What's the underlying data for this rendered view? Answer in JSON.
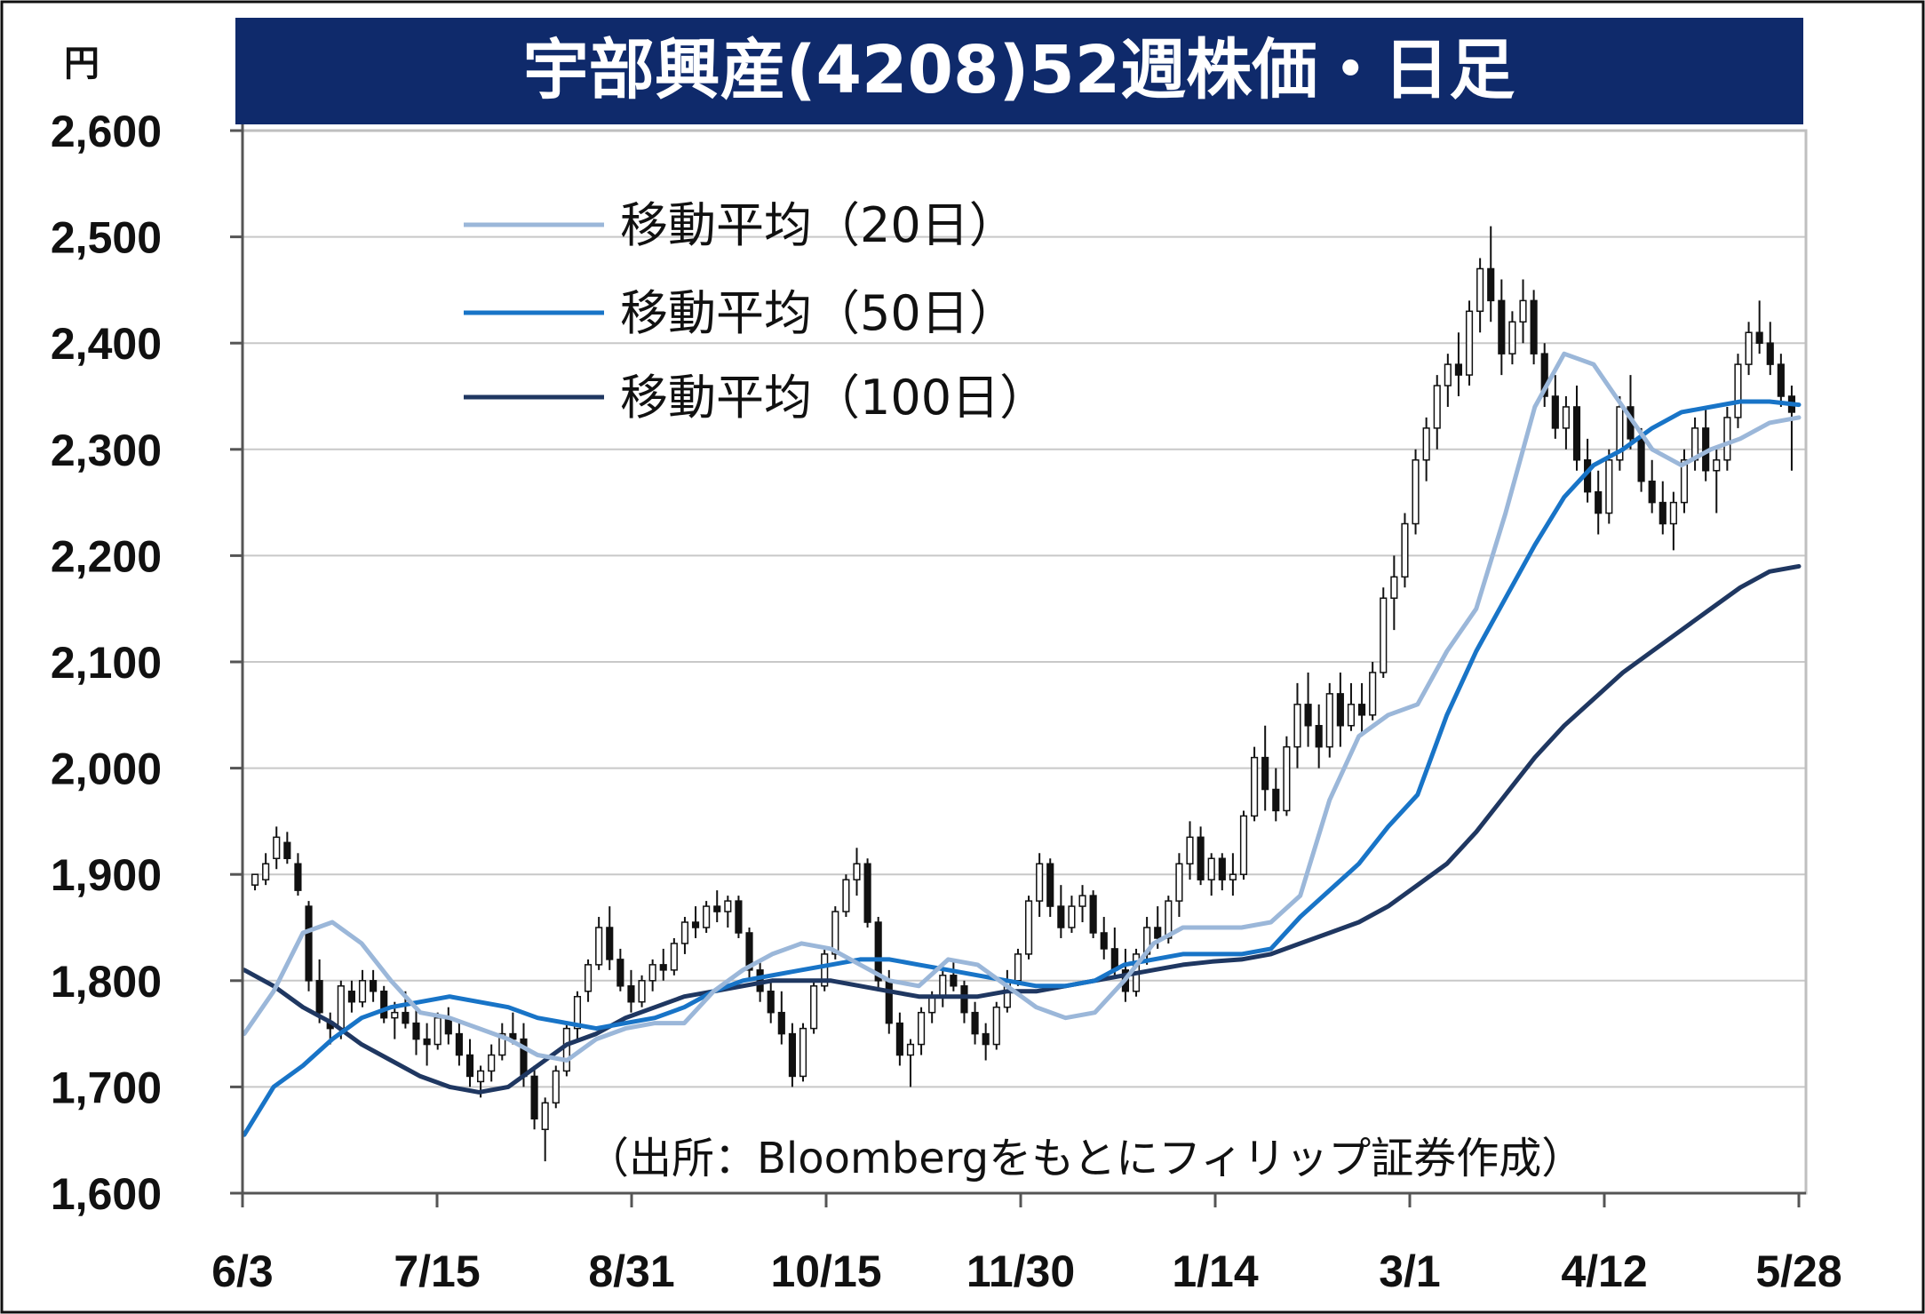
{
  "chart_data": {
    "type": "candlestick",
    "title": "宇部興産(4208)52週株価・日足",
    "unit_label": "円",
    "source_note": "（出所：Bloombergをもとにフィリップ証券作成）",
    "ylim": [
      1600,
      2600
    ],
    "y_ticks": [
      "1,600",
      "1,700",
      "1,800",
      "1,900",
      "2,000",
      "2,100",
      "2,200",
      "2,300",
      "2,400",
      "2,500",
      "2,600"
    ],
    "y_tick_values": [
      1600,
      1700,
      1800,
      1900,
      2000,
      2100,
      2200,
      2300,
      2400,
      2500,
      2600
    ],
    "x_ticks": [
      "6/3",
      "7/15",
      "8/31",
      "10/15",
      "11/30",
      "1/14",
      "3/1",
      "4/12",
      "5/28"
    ],
    "grid": true,
    "legend_position": "top-left",
    "colors": {
      "title_bg": "#0f2a6b",
      "ma20": "#9bb7d9",
      "ma50": "#1874c7",
      "ma100": "#1f3761",
      "candle": "#111111",
      "grid": "#c8c8c8"
    },
    "series": [
      {
        "name": "移動平均（20日）",
        "key": "ma20",
        "values": [
          1750,
          1790,
          1845,
          1855,
          1835,
          1800,
          1770,
          1765,
          1755,
          1745,
          1730,
          1725,
          1745,
          1755,
          1760,
          1760,
          1790,
          1810,
          1825,
          1835,
          1830,
          1815,
          1800,
          1795,
          1820,
          1815,
          1795,
          1775,
          1765,
          1770,
          1800,
          1835,
          1850,
          1850,
          1850,
          1855,
          1880,
          1970,
          2030,
          2050,
          2060,
          2110,
          2150,
          2240,
          2340,
          2390,
          2380,
          2340,
          2300,
          2285,
          2300,
          2310,
          2325,
          2330
        ]
      },
      {
        "name": "移動平均（50日）",
        "key": "ma50",
        "values": [
          1655,
          1700,
          1720,
          1745,
          1765,
          1775,
          1780,
          1785,
          1780,
          1775,
          1765,
          1760,
          1755,
          1760,
          1765,
          1775,
          1790,
          1800,
          1805,
          1810,
          1815,
          1820,
          1820,
          1815,
          1810,
          1805,
          1800,
          1795,
          1795,
          1800,
          1815,
          1820,
          1825,
          1825,
          1825,
          1830,
          1860,
          1885,
          1910,
          1945,
          1975,
          2050,
          2110,
          2160,
          2210,
          2255,
          2285,
          2300,
          2320,
          2335,
          2340,
          2345,
          2345,
          2342
        ]
      },
      {
        "name": "移動平均（100日）",
        "key": "ma100",
        "values": [
          1810,
          1795,
          1775,
          1760,
          1740,
          1725,
          1710,
          1700,
          1695,
          1700,
          1720,
          1740,
          1750,
          1765,
          1775,
          1785,
          1790,
          1795,
          1800,
          1800,
          1800,
          1795,
          1790,
          1785,
          1785,
          1785,
          1790,
          1790,
          1795,
          1800,
          1805,
          1810,
          1815,
          1818,
          1820,
          1825,
          1835,
          1845,
          1855,
          1870,
          1890,
          1910,
          1940,
          1975,
          2010,
          2040,
          2065,
          2090,
          2110,
          2130,
          2150,
          2170,
          2185,
          2190
        ]
      }
    ],
    "candles": [
      [
        1890,
        1900,
        1885,
        1900
      ],
      [
        1895,
        1920,
        1890,
        1910
      ],
      [
        1915,
        1945,
        1905,
        1935
      ],
      [
        1930,
        1940,
        1910,
        1915
      ],
      [
        1910,
        1920,
        1880,
        1885
      ],
      [
        1870,
        1875,
        1790,
        1800
      ],
      [
        1800,
        1820,
        1760,
        1770
      ],
      [
        1760,
        1770,
        1740,
        1755
      ],
      [
        1755,
        1800,
        1745,
        1795
      ],
      [
        1790,
        1800,
        1770,
        1780
      ],
      [
        1780,
        1810,
        1775,
        1800
      ],
      [
        1800,
        1810,
        1780,
        1790
      ],
      [
        1790,
        1795,
        1760,
        1765
      ],
      [
        1765,
        1780,
        1745,
        1770
      ],
      [
        1770,
        1790,
        1755,
        1760
      ],
      [
        1760,
        1775,
        1730,
        1745
      ],
      [
        1745,
        1760,
        1720,
        1740
      ],
      [
        1740,
        1770,
        1735,
        1765
      ],
      [
        1765,
        1775,
        1740,
        1750
      ],
      [
        1750,
        1760,
        1720,
        1730
      ],
      [
        1730,
        1745,
        1700,
        1710
      ],
      [
        1705,
        1720,
        1690,
        1715
      ],
      [
        1715,
        1740,
        1705,
        1730
      ],
      [
        1730,
        1760,
        1725,
        1750
      ],
      [
        1750,
        1770,
        1740,
        1745
      ],
      [
        1745,
        1760,
        1700,
        1710
      ],
      [
        1710,
        1720,
        1660,
        1670
      ],
      [
        1660,
        1690,
        1630,
        1685
      ],
      [
        1685,
        1720,
        1680,
        1715
      ],
      [
        1715,
        1760,
        1710,
        1755
      ],
      [
        1755,
        1790,
        1745,
        1785
      ],
      [
        1790,
        1820,
        1780,
        1815
      ],
      [
        1815,
        1860,
        1810,
        1850
      ],
      [
        1850,
        1870,
        1810,
        1820
      ],
      [
        1820,
        1830,
        1790,
        1795
      ],
      [
        1795,
        1810,
        1770,
        1780
      ],
      [
        1780,
        1805,
        1775,
        1800
      ],
      [
        1800,
        1820,
        1790,
        1815
      ],
      [
        1815,
        1830,
        1800,
        1810
      ],
      [
        1810,
        1840,
        1805,
        1835
      ],
      [
        1835,
        1860,
        1825,
        1855
      ],
      [
        1855,
        1870,
        1840,
        1850
      ],
      [
        1850,
        1875,
        1845,
        1870
      ],
      [
        1870,
        1885,
        1855,
        1865
      ],
      [
        1865,
        1880,
        1850,
        1875
      ],
      [
        1875,
        1880,
        1840,
        1845
      ],
      [
        1845,
        1850,
        1800,
        1810
      ],
      [
        1810,
        1820,
        1780,
        1790
      ],
      [
        1790,
        1800,
        1760,
        1770
      ],
      [
        1770,
        1790,
        1740,
        1750
      ],
      [
        1750,
        1760,
        1700,
        1710
      ],
      [
        1710,
        1760,
        1705,
        1755
      ],
      [
        1755,
        1800,
        1750,
        1795
      ],
      [
        1795,
        1830,
        1790,
        1825
      ],
      [
        1825,
        1870,
        1820,
        1865
      ],
      [
        1865,
        1900,
        1860,
        1895
      ],
      [
        1895,
        1925,
        1880,
        1910
      ],
      [
        1910,
        1915,
        1850,
        1855
      ],
      [
        1855,
        1860,
        1790,
        1800
      ],
      [
        1800,
        1810,
        1750,
        1760
      ],
      [
        1760,
        1770,
        1720,
        1730
      ],
      [
        1730,
        1745,
        1700,
        1740
      ],
      [
        1740,
        1775,
        1730,
        1770
      ],
      [
        1770,
        1790,
        1760,
        1785
      ],
      [
        1785,
        1810,
        1775,
        1805
      ],
      [
        1805,
        1820,
        1790,
        1795
      ],
      [
        1795,
        1800,
        1760,
        1770
      ],
      [
        1770,
        1780,
        1740,
        1750
      ],
      [
        1750,
        1760,
        1725,
        1740
      ],
      [
        1740,
        1780,
        1735,
        1775
      ],
      [
        1775,
        1810,
        1770,
        1800
      ],
      [
        1800,
        1830,
        1795,
        1825
      ],
      [
        1825,
        1880,
        1820,
        1875
      ],
      [
        1875,
        1920,
        1860,
        1910
      ],
      [
        1910,
        1915,
        1860,
        1870
      ],
      [
        1870,
        1890,
        1840,
        1850
      ],
      [
        1850,
        1880,
        1845,
        1870
      ],
      [
        1870,
        1890,
        1855,
        1880
      ],
      [
        1880,
        1885,
        1840,
        1845
      ],
      [
        1845,
        1860,
        1820,
        1830
      ],
      [
        1830,
        1850,
        1805,
        1810
      ],
      [
        1810,
        1830,
        1780,
        1790
      ],
      [
        1790,
        1830,
        1785,
        1825
      ],
      [
        1825,
        1860,
        1815,
        1850
      ],
      [
        1850,
        1870,
        1830,
        1840
      ],
      [
        1840,
        1880,
        1835,
        1875
      ],
      [
        1875,
        1920,
        1860,
        1910
      ],
      [
        1910,
        1950,
        1895,
        1935
      ],
      [
        1935,
        1945,
        1890,
        1895
      ],
      [
        1895,
        1920,
        1880,
        1915
      ],
      [
        1915,
        1920,
        1885,
        1895
      ],
      [
        1895,
        1920,
        1880,
        1900
      ],
      [
        1900,
        1960,
        1895,
        1955
      ],
      [
        1955,
        2020,
        1950,
        2010
      ],
      [
        2010,
        2040,
        1960,
        1980
      ],
      [
        1980,
        2000,
        1950,
        1960
      ],
      [
        1960,
        2030,
        1955,
        2020
      ],
      [
        2020,
        2080,
        2000,
        2060
      ],
      [
        2060,
        2090,
        2020,
        2040
      ],
      [
        2040,
        2060,
        2000,
        2020
      ],
      [
        2020,
        2080,
        2010,
        2070
      ],
      [
        2070,
        2090,
        2020,
        2040
      ],
      [
        2040,
        2080,
        2035,
        2060
      ],
      [
        2060,
        2080,
        2030,
        2050
      ],
      [
        2050,
        2100,
        2045,
        2090
      ],
      [
        2090,
        2170,
        2085,
        2160
      ],
      [
        2160,
        2200,
        2130,
        2180
      ],
      [
        2180,
        2240,
        2170,
        2230
      ],
      [
        2230,
        2300,
        2220,
        2290
      ],
      [
        2290,
        2330,
        2270,
        2320
      ],
      [
        2320,
        2370,
        2300,
        2360
      ],
      [
        2360,
        2390,
        2340,
        2380
      ],
      [
        2380,
        2410,
        2350,
        2370
      ],
      [
        2370,
        2440,
        2360,
        2430
      ],
      [
        2430,
        2480,
        2410,
        2470
      ],
      [
        2470,
        2510,
        2420,
        2440
      ],
      [
        2440,
        2460,
        2370,
        2390
      ],
      [
        2390,
        2430,
        2380,
        2420
      ],
      [
        2420,
        2460,
        2400,
        2440
      ],
      [
        2440,
        2450,
        2380,
        2390
      ],
      [
        2390,
        2400,
        2340,
        2350
      ],
      [
        2350,
        2370,
        2310,
        2320
      ],
      [
        2320,
        2350,
        2300,
        2340
      ],
      [
        2340,
        2360,
        2280,
        2290
      ],
      [
        2290,
        2310,
        2250,
        2260
      ],
      [
        2260,
        2280,
        2220,
        2240
      ],
      [
        2240,
        2300,
        2230,
        2290
      ],
      [
        2290,
        2350,
        2280,
        2340
      ],
      [
        2340,
        2370,
        2300,
        2310
      ],
      [
        2310,
        2320,
        2260,
        2270
      ],
      [
        2270,
        2290,
        2240,
        2250
      ],
      [
        2250,
        2270,
        2220,
        2230
      ],
      [
        2230,
        2260,
        2205,
        2250
      ],
      [
        2250,
        2300,
        2240,
        2290
      ],
      [
        2290,
        2330,
        2280,
        2320
      ],
      [
        2320,
        2340,
        2270,
        2280
      ],
      [
        2280,
        2300,
        2240,
        2290
      ],
      [
        2290,
        2340,
        2280,
        2330
      ],
      [
        2330,
        2390,
        2320,
        2380
      ],
      [
        2380,
        2420,
        2370,
        2410
      ],
      [
        2410,
        2440,
        2390,
        2400
      ],
      [
        2400,
        2420,
        2370,
        2380
      ],
      [
        2380,
        2390,
        2340,
        2350
      ],
      [
        2350,
        2360,
        2280,
        2335
      ]
    ]
  }
}
